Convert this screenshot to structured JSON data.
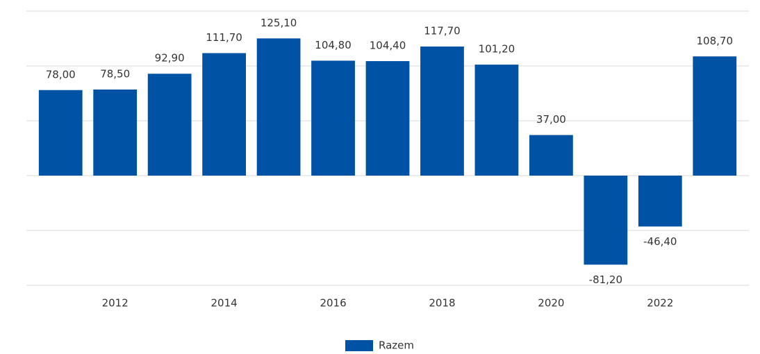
{
  "chart_data": {
    "type": "bar",
    "categories": [
      null,
      "2012",
      null,
      "2014",
      null,
      "2016",
      null,
      "2018",
      null,
      "2020",
      null,
      "2022",
      null
    ],
    "series": [
      {
        "name": "Razem",
        "color": "#0052a5",
        "values": [
          78.0,
          78.5,
          92.9,
          111.7,
          125.1,
          104.8,
          104.4,
          117.7,
          101.2,
          37.0,
          -81.2,
          -46.4,
          108.7
        ],
        "value_labels": [
          "78,00",
          "78,50",
          "92,90",
          "111,70",
          "125,10",
          "104,80",
          "104,40",
          "117,70",
          "101,20",
          "37,00",
          "-81,20",
          "-46,40",
          "108,70"
        ]
      }
    ],
    "ylim": [
      -100,
      150
    ],
    "yticks": [
      -100,
      -50,
      0,
      50,
      100,
      150
    ],
    "grid": true,
    "legend": "bottom"
  }
}
